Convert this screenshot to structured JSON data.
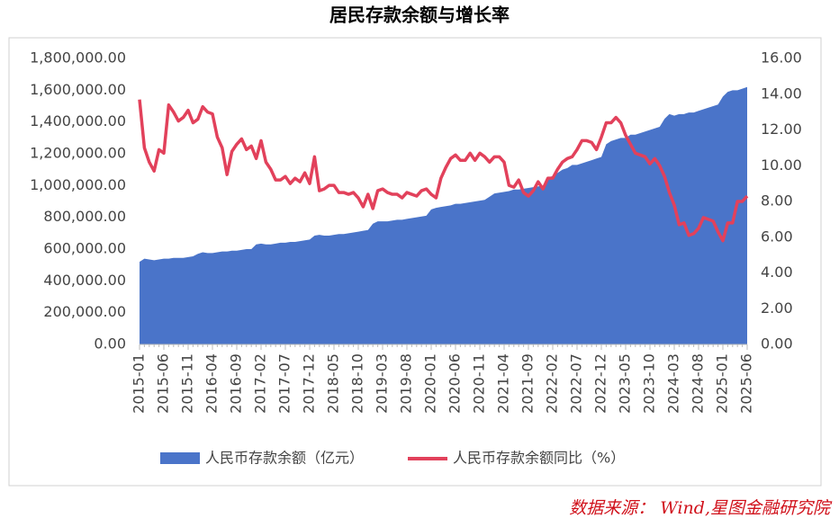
{
  "chart_data": {
    "type": "area_line",
    "title": "居民存款余额与增长率",
    "source": "数据来源： Wind,星图金融研究院",
    "categories": [
      "2015-01",
      null,
      null,
      null,
      null,
      "2015-06",
      null,
      null,
      null,
      null,
      "2015-11",
      null,
      null,
      null,
      null,
      "2016-04",
      null,
      null,
      null,
      null,
      "2016-09",
      null,
      null,
      null,
      null,
      "2017-02",
      null,
      null,
      null,
      null,
      "2017-07",
      null,
      null,
      null,
      null,
      "2017-12",
      null,
      null,
      null,
      null,
      "2018-05",
      null,
      null,
      null,
      null,
      "2018-10",
      null,
      null,
      null,
      null,
      "2019-03",
      null,
      null,
      null,
      null,
      "2019-08",
      null,
      null,
      null,
      null,
      "2020-01",
      null,
      null,
      null,
      null,
      "2020-06",
      null,
      null,
      null,
      null,
      "2020-11",
      null,
      null,
      null,
      null,
      "2021-04",
      null,
      null,
      null,
      null,
      "2021-09",
      null,
      null,
      null,
      null,
      "2022-02",
      null,
      null,
      null,
      null,
      "2022-07",
      null,
      null,
      null,
      null,
      "2022-12",
      null,
      null,
      null,
      null,
      "2023-05",
      null,
      null,
      null,
      null,
      "2023-10",
      null,
      null,
      null,
      null,
      "2024-03",
      null,
      null,
      null,
      null,
      "2024-08",
      null,
      null,
      null,
      null,
      "2025-01",
      null,
      null,
      null,
      null,
      "2025-06"
    ],
    "series": [
      {
        "name": "人民币存款余额（亿元）",
        "kind": "area",
        "color": "#4a74c9",
        "values": [
          520000,
          540000,
          535000,
          530000,
          535000,
          540000,
          540000,
          545000,
          545000,
          545000,
          550000,
          555000,
          570000,
          580000,
          575000,
          575000,
          580000,
          585000,
          585000,
          590000,
          590000,
          595000,
          600000,
          600000,
          630000,
          635000,
          630000,
          630000,
          635000,
          640000,
          640000,
          645000,
          645000,
          650000,
          655000,
          660000,
          685000,
          690000,
          685000,
          685000,
          690000,
          695000,
          695000,
          700000,
          705000,
          710000,
          715000,
          720000,
          760000,
          775000,
          775000,
          775000,
          780000,
          785000,
          785000,
          790000,
          795000,
          800000,
          805000,
          810000,
          850000,
          860000,
          865000,
          870000,
          875000,
          885000,
          885000,
          890000,
          895000,
          900000,
          905000,
          910000,
          930000,
          950000,
          955000,
          960000,
          965000,
          975000,
          975000,
          980000,
          985000,
          990000,
          995000,
          1000000,
          1050000,
          1060000,
          1080000,
          1100000,
          1110000,
          1130000,
          1130000,
          1140000,
          1150000,
          1160000,
          1170000,
          1180000,
          1260000,
          1280000,
          1290000,
          1300000,
          1300000,
          1320000,
          1320000,
          1330000,
          1340000,
          1350000,
          1360000,
          1370000,
          1420000,
          1450000,
          1440000,
          1450000,
          1450000,
          1460000,
          1460000,
          1470000,
          1480000,
          1490000,
          1500000,
          1510000,
          1560000,
          1590000,
          1600000,
          1600000,
          1610000,
          1620000
        ]
      },
      {
        "name": "人民币存款余额同比（%）",
        "kind": "line",
        "axis": "y2",
        "color": "#e2415b",
        "values": [
          13.7,
          11.0,
          10.2,
          9.7,
          10.9,
          10.7,
          13.4,
          13.0,
          12.5,
          12.7,
          13.1,
          12.4,
          12.6,
          13.3,
          13.0,
          12.9,
          11.6,
          11.0,
          9.5,
          10.8,
          11.2,
          11.5,
          10.9,
          11.1,
          10.4,
          11.4,
          10.2,
          9.8,
          9.2,
          9.2,
          9.4,
          9.0,
          9.3,
          9.1,
          9.6,
          9.0,
          10.5,
          8.6,
          8.7,
          8.9,
          8.9,
          8.5,
          8.5,
          8.4,
          8.5,
          8.2,
          7.7,
          8.4,
          7.6,
          8.6,
          8.7,
          8.5,
          8.4,
          8.4,
          8.2,
          8.5,
          8.4,
          8.3,
          8.6,
          8.7,
          8.4,
          8.2,
          9.3,
          9.9,
          10.4,
          10.6,
          10.3,
          10.3,
          10.7,
          10.3,
          10.7,
          10.5,
          10.2,
          10.5,
          10.5,
          10.2,
          8.9,
          8.8,
          9.2,
          8.5,
          8.3,
          8.6,
          9.1,
          8.7,
          9.3,
          9.3,
          9.8,
          10.2,
          10.4,
          10.5,
          10.9,
          11.4,
          11.4,
          11.3,
          10.9,
          11.6,
          12.4,
          12.4,
          12.7,
          12.4,
          11.7,
          11.2,
          10.7,
          10.6,
          10.5,
          10.1,
          10.4,
          10.0,
          9.4,
          8.5,
          7.8,
          6.7,
          6.8,
          6.1,
          6.2,
          6.5,
          7.1,
          7.0,
          6.9,
          6.3,
          5.8,
          6.8,
          6.8,
          8.0,
          8.0,
          8.3
        ]
      }
    ],
    "ylim": [
      0,
      1800000
    ],
    "yticks": [
      {
        "value": 0,
        "label": "0.00"
      },
      {
        "value": 200000,
        "label": "200,000.00"
      },
      {
        "value": 400000,
        "label": "400,000.00"
      },
      {
        "value": 600000,
        "label": "600,000.00"
      },
      {
        "value": 800000,
        "label": "800,000.00"
      },
      {
        "value": 1000000,
        "label": "1,000,000.00"
      },
      {
        "value": 1200000,
        "label": "1,200,000.00"
      },
      {
        "value": 1400000,
        "label": "1,400,000.00"
      },
      {
        "value": 1600000,
        "label": "1,600,000.00"
      },
      {
        "value": 1800000,
        "label": "1,800,000.00"
      }
    ],
    "y2lim": [
      0,
      16
    ],
    "y2ticks": [
      {
        "value": 0,
        "label": "0.00"
      },
      {
        "value": 2,
        "label": "2.00"
      },
      {
        "value": 4,
        "label": "4.00"
      },
      {
        "value": 6,
        "label": "6.00"
      },
      {
        "value": 8,
        "label": "8.00"
      },
      {
        "value": 10,
        "label": "10.00"
      },
      {
        "value": 12,
        "label": "12.00"
      },
      {
        "value": 14,
        "label": "14.00"
      },
      {
        "value": 16,
        "label": "16.00"
      }
    ],
    "legend": "bottom"
  }
}
